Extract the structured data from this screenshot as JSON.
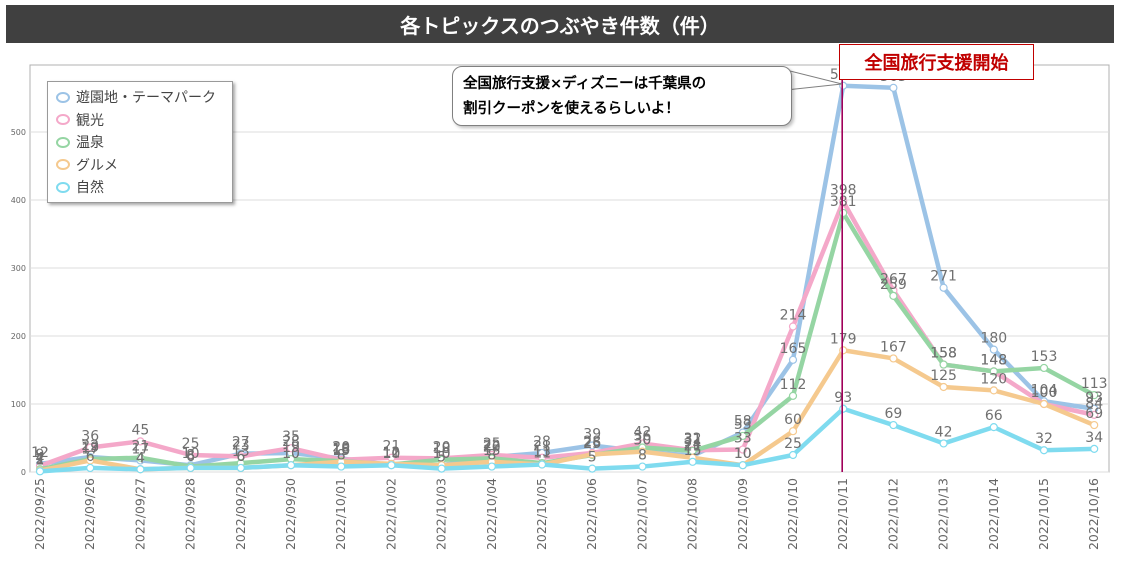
{
  "header": {
    "title": "各トピックスのつぶやき件数（件）"
  },
  "annotation": {
    "event_label": "全国旅行支援開始",
    "event_date": "2022/10/11",
    "callout_line1": "全国旅行支援×ディズニーは千葉県の",
    "callout_line2": "割引クーポンを使えるらしいよ！"
  },
  "colors": {
    "遊園地・テーマパーク": "#9cc3e6",
    "観光": "#f4a8c9",
    "温泉": "#95d5a3",
    "グルメ": "#f5c98e",
    "自然": "#7fdbef",
    "event_line": "#a0005a"
  },
  "chart_data": {
    "type": "line",
    "title": "各トピックスのつぶやき件数（件）",
    "xlabel": "",
    "ylabel": "",
    "ylim": [
      0,
      600
    ],
    "yticks": [
      0,
      100,
      200,
      300,
      400,
      500
    ],
    "grid": true,
    "legend_position": "top-left",
    "categories": [
      "2022/09/25",
      "2022/09/26",
      "2022/09/27",
      "2022/09/28",
      "2022/09/29",
      "2022/09/30",
      "2022/10/01",
      "2022/10/02",
      "2022/10/03",
      "2022/10/04",
      "2022/10/05",
      "2022/10/06",
      "2022/10/07",
      "2022/10/08",
      "2022/10/09",
      "2022/10/10",
      "2022/10/11",
      "2022/10/12",
      "2022/10/13",
      "2022/10/14",
      "2022/10/15",
      "2022/10/16"
    ],
    "series": [
      {
        "name": "遊園地・テーマパーク",
        "values": [
          12,
          22,
          17,
          10,
          27,
          28,
          20,
          10,
          10,
          22,
          28,
          39,
          30,
          24,
          58,
          165,
          568,
          565,
          271,
          180,
          104,
          93
        ]
      },
      {
        "name": "観光",
        "values": [
          9,
          36,
          45,
          25,
          23,
          35,
          18,
          21,
          20,
          25,
          21,
          28,
          42,
          32,
          33,
          214,
          398,
          267,
          158,
          148,
          100,
          84
        ]
      },
      {
        "name": "温泉",
        "values": [
          4,
          19,
          21,
          8,
          13,
          19,
          16,
          11,
          18,
          20,
          13,
          25,
          36,
          31,
          53,
          112,
          381,
          259,
          158,
          148,
          153,
          113
        ]
      },
      {
        "name": "グルメ",
        "values": [
          2,
          17,
          4,
          6,
          6,
          10,
          15,
          12,
          10,
          15,
          11,
          26,
          30,
          21,
          10,
          60,
          179,
          167,
          125,
          120,
          100,
          69
        ]
      },
      {
        "name": "自然",
        "values": [
          1,
          6,
          4,
          6,
          6,
          10,
          8,
          10,
          5,
          8,
          11,
          5,
          8,
          15,
          10,
          25,
          93,
          69,
          42,
          66,
          32,
          34
        ]
      }
    ]
  }
}
